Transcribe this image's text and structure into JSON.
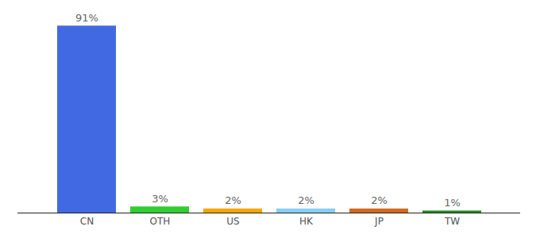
{
  "chart_data": {
    "type": "bar",
    "categories": [
      "CN",
      "OTH",
      "US",
      "HK",
      "JP",
      "TW"
    ],
    "values": [
      91,
      3,
      2,
      2,
      2,
      1
    ],
    "value_labels": [
      "91%",
      "3%",
      "2%",
      "2%",
      "2%",
      "1%"
    ],
    "colors": [
      "#4169e1",
      "#32cd32",
      "#ffa500",
      "#87cefa",
      "#d2691e",
      "#228b22"
    ],
    "ylim": [
      0,
      100
    ],
    "data_labels": true,
    "tick_labels": "x"
  }
}
